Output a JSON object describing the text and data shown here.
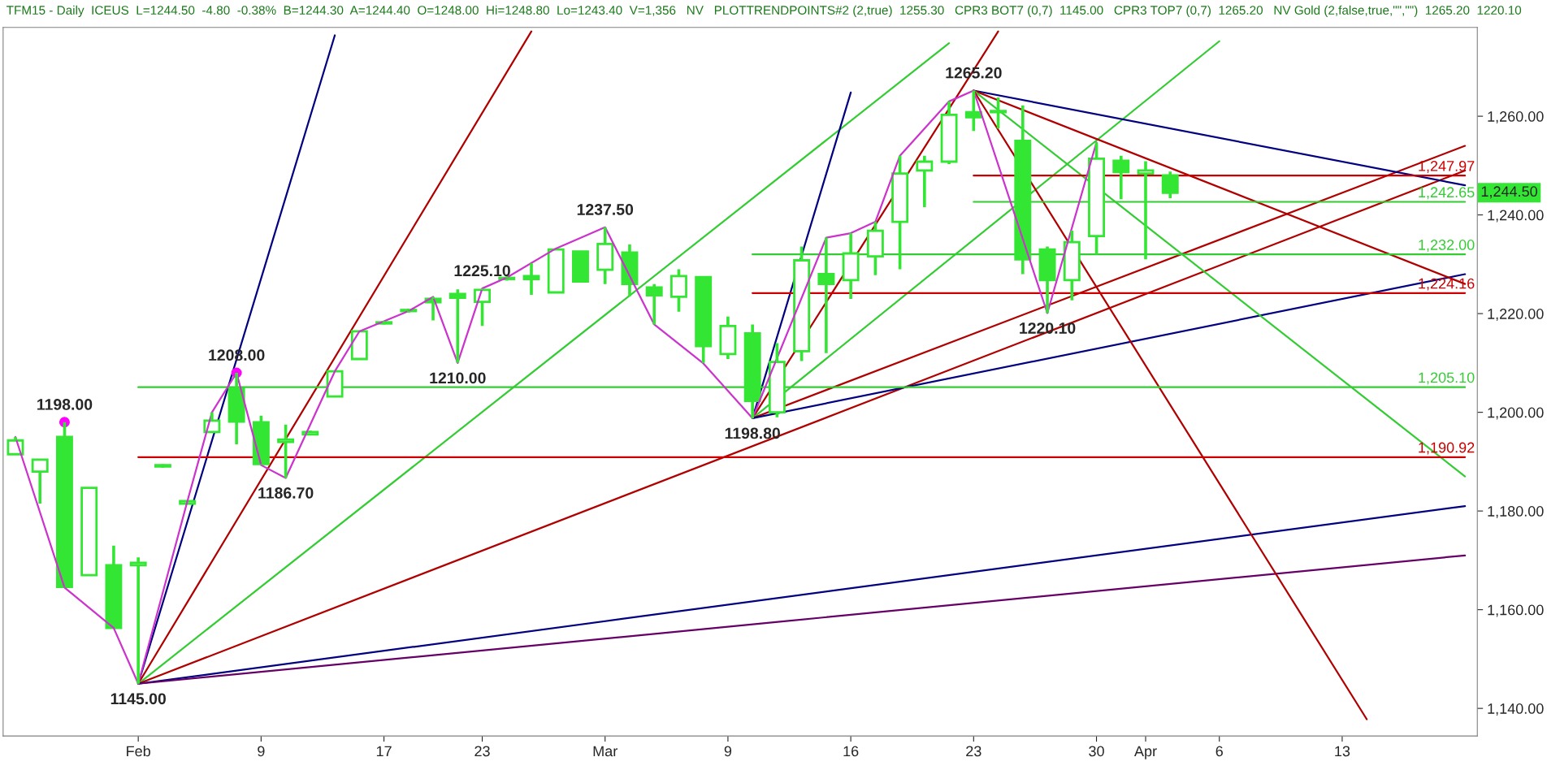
{
  "chart_data": {
    "type": "candlestick",
    "title": "TFM15 - Daily  ICEUS  L=1244.50  -4.80  -0.38%  B=1244.30  A=1244.40  O=1248.00  Hi=1248.80  Lo=1243.40  V=1,356   NV   PLOTTRENDPOINTS#2 (2,true)  1255.30   CPR3 BOT7 (0,7)  1145.00   CPR3 TOP7 (0,7)  1265.20   NV Gold (2,false,true,\"\",\"\")  1265.20  1220.10",
    "color": "#33e633",
    "categories": [
      null,
      null,
      null,
      null,
      null,
      "Feb",
      null,
      null,
      null,
      null,
      "9",
      null,
      null,
      null,
      null,
      "17",
      null,
      null,
      null,
      "23",
      null,
      null,
      null,
      null,
      "Mar",
      null,
      null,
      null,
      null,
      "9",
      null,
      null,
      null,
      null,
      "16",
      null,
      null,
      null,
      null,
      "23",
      null,
      null,
      null,
      null,
      "30",
      null,
      "Apr",
      null,
      null,
      "6",
      null,
      null,
      null,
      null,
      "13",
      null,
      null,
      null,
      null,
      null
    ],
    "ohlc": [
      [
        1191.5,
        1195,
        1191.5,
        1194.3
      ],
      [
        1188,
        1190.5,
        1181.5,
        1190.4
      ],
      [
        1195,
        1198,
        1164.5,
        1164.6
      ],
      [
        1167,
        1184.7,
        1167,
        1184.7
      ],
      [
        1169,
        1173,
        1156.3,
        1156.3
      ],
      [
        1169,
        1170.6,
        1145,
        1169.5
      ],
      [
        1189,
        1189.5,
        1188.8,
        1189.3
      ],
      [
        1181.5,
        1182,
        1181.5,
        1182
      ],
      [
        1196,
        1200,
        1196,
        1198.3
      ],
      [
        1204.8,
        1208,
        1193.5,
        1198.1
      ],
      [
        1198,
        1199.3,
        1189.3,
        1189.5
      ],
      [
        1194,
        1197.5,
        1186.7,
        1194.5
      ],
      [
        1195.5,
        1196.3,
        1195.5,
        1196
      ],
      [
        1203.2,
        1208.3,
        1203.2,
        1208.3
      ],
      [
        1210.8,
        1216.4,
        1210.8,
        1216.4
      ],
      [
        1218,
        1218.5,
        1217.8,
        1218.2
      ],
      [
        1220.5,
        1221,
        1220.2,
        1220.6
      ],
      [
        1223,
        1223.4,
        1218.6,
        1222.3
      ],
      [
        1224,
        1224.9,
        1210,
        1223.2
      ],
      [
        1222.4,
        1225.1,
        1217.5,
        1224.8
      ],
      [
        1227,
        1227.5,
        1226.7,
        1227.2
      ],
      [
        1227.6,
        1230.2,
        1223.8,
        1227
      ],
      [
        1224.3,
        1233,
        1224.3,
        1233
      ],
      [
        1232.6,
        1232.6,
        1226.5,
        1226.5
      ],
      [
        1228.9,
        1237.5,
        1226,
        1234.1
      ],
      [
        1232.4,
        1234,
        1223.5,
        1226
      ],
      [
        1225.3,
        1226,
        1217.8,
        1223.7
      ],
      [
        1223.4,
        1229,
        1220.4,
        1227.6
      ],
      [
        1227.4,
        1227.4,
        1210,
        1213.4
      ],
      [
        1211.8,
        1219.4,
        1210.8,
        1217.5
      ],
      [
        1216,
        1217.8,
        1198.8,
        1202.3
      ],
      [
        1200,
        1214,
        1199,
        1210.2
      ],
      [
        1212.4,
        1233.6,
        1210.4,
        1230.8
      ],
      [
        1228,
        1235.4,
        1212,
        1226
      ],
      [
        1226.8,
        1236.3,
        1223,
        1232.2
      ],
      [
        1231.6,
        1238.6,
        1227.8,
        1236.8
      ],
      [
        1238.6,
        1252,
        1229,
        1248.4
      ],
      [
        1249,
        1252,
        1241.6,
        1250.8
      ],
      [
        1250.8,
        1263,
        1250.3,
        1260.3
      ],
      [
        1260.8,
        1265.2,
        1257,
        1259.8
      ],
      [
        1260.8,
        1263.8,
        1257.5,
        1261
      ],
      [
        1255,
        1262.2,
        1228,
        1231
      ],
      [
        1233,
        1233.6,
        1220.1,
        1226.8
      ],
      [
        1226.8,
        1236.8,
        1222.7,
        1234.5
      ],
      [
        1235.7,
        1254.7,
        1232,
        1251.4
      ],
      [
        1251,
        1252,
        1243.2,
        1248.7
      ],
      [
        1248.4,
        1250.9,
        1231,
        1249
      ],
      [
        1248,
        1248.8,
        1243.4,
        1244.5
      ],
      null,
      null,
      null,
      null,
      null,
      null,
      null,
      null,
      null,
      null,
      null,
      null
    ],
    "series": [
      {
        "type": "line",
        "color": "#cc33cc",
        "values": [
          1195,
          null,
          1164.5,
          null,
          1156.3,
          1145,
          null,
          1182,
          1200,
          1208,
          1189.3,
          1186.7,
          null,
          1208.3,
          1216.4,
          null,
          1220.5,
          1223.4,
          1210,
          1225.1,
          1227.3,
          null,
          1233.2,
          null,
          1237.5,
          null,
          1217.8,
          null,
          1209.9,
          null,
          1198.8,
          null,
          null,
          1235.4,
          1236.3,
          1238.6,
          1252,
          null,
          1263,
          1265.2,
          null,
          null,
          1220.1,
          null,
          1254.7,
          null,
          null,
          null,
          null,
          null,
          null,
          null,
          null,
          null,
          null,
          null,
          null,
          null,
          null,
          null
        ]
      },
      {
        "type": "line",
        "color": "#000080",
        "values": [
          null,
          null,
          null,
          null,
          null,
          1145,
          null,
          null,
          null,
          null,
          null,
          null,
          null,
          1276.4,
          null,
          null,
          null,
          null,
          null,
          null,
          null,
          null,
          null,
          null,
          null,
          null,
          null,
          null,
          null,
          null,
          null,
          null,
          null,
          null,
          null,
          null,
          null,
          null,
          null,
          null,
          null,
          null,
          null,
          null,
          null,
          null,
          null,
          null,
          null,
          null,
          null,
          null,
          null,
          null,
          null,
          null,
          null,
          null,
          null,
          null
        ]
      },
      {
        "type": "line",
        "color": "#b00000",
        "values": [
          null,
          null,
          null,
          null,
          null,
          1145,
          null,
          null,
          null,
          null,
          null,
          null,
          null,
          null,
          null,
          null,
          null,
          null,
          null,
          null,
          null,
          1277.2,
          null,
          null,
          null,
          null,
          null,
          null,
          null,
          null,
          null,
          null,
          null,
          null,
          null,
          null,
          null,
          null,
          null,
          null,
          null,
          null,
          null,
          null,
          null,
          null,
          null,
          null,
          null,
          null,
          null,
          null,
          null,
          null,
          null,
          null,
          null,
          null,
          null,
          null
        ]
      },
      {
        "type": "line",
        "color": "#33cc33",
        "values": [
          null,
          null,
          null,
          null,
          null,
          1145,
          null,
          null,
          null,
          null,
          null,
          null,
          null,
          null,
          null,
          null,
          null,
          null,
          null,
          null,
          null,
          null,
          null,
          null,
          null,
          null,
          null,
          null,
          null,
          null,
          null,
          null,
          null,
          null,
          null,
          null,
          null,
          null,
          1274.8,
          null,
          null,
          null,
          null,
          null,
          null,
          null,
          null,
          null,
          null,
          null,
          null,
          null,
          null,
          null,
          null,
          null,
          null,
          null,
          null,
          null
        ]
      },
      {
        "type": "line",
        "color": "#b00000",
        "values": [
          null,
          null,
          null,
          null,
          null,
          1145,
          null,
          null,
          null,
          null,
          null,
          null,
          null,
          null,
          null,
          null,
          null,
          null,
          null,
          null,
          null,
          null,
          null,
          null,
          null,
          null,
          null,
          null,
          null,
          null,
          null,
          null,
          null,
          null,
          null,
          null,
          null,
          null,
          null,
          null,
          null,
          null,
          null,
          null,
          null,
          null,
          null,
          null,
          null,
          null,
          null,
          null,
          null,
          null,
          null,
          null,
          null,
          null,
          null,
          1249
        ]
      },
      {
        "type": "line",
        "color": "#000080",
        "values": [
          null,
          null,
          null,
          null,
          null,
          1145,
          null,
          null,
          null,
          null,
          null,
          null,
          null,
          null,
          null,
          null,
          null,
          null,
          null,
          null,
          null,
          null,
          null,
          null,
          null,
          null,
          null,
          null,
          null,
          null,
          null,
          null,
          null,
          null,
          null,
          null,
          null,
          null,
          null,
          null,
          null,
          null,
          null,
          null,
          null,
          null,
          null,
          null,
          null,
          null,
          null,
          null,
          null,
          null,
          null,
          null,
          null,
          null,
          null,
          1181
        ]
      },
      {
        "type": "line",
        "color": "#660066",
        "values": [
          null,
          null,
          null,
          null,
          null,
          1145,
          null,
          null,
          null,
          null,
          null,
          null,
          null,
          null,
          null,
          null,
          null,
          null,
          null,
          null,
          null,
          null,
          null,
          null,
          null,
          null,
          null,
          null,
          null,
          null,
          null,
          null,
          null,
          null,
          null,
          null,
          null,
          null,
          null,
          null,
          null,
          null,
          null,
          null,
          null,
          null,
          null,
          null,
          null,
          null,
          null,
          null,
          null,
          null,
          null,
          null,
          null,
          null,
          null,
          1171
        ]
      },
      {
        "type": "line",
        "color": "#000080",
        "values": [
          null,
          null,
          null,
          null,
          null,
          null,
          null,
          null,
          null,
          null,
          null,
          null,
          null,
          null,
          null,
          null,
          null,
          null,
          null,
          null,
          null,
          null,
          null,
          null,
          null,
          null,
          null,
          null,
          null,
          null,
          1198.8,
          null,
          null,
          null,
          1264.8,
          null,
          null,
          null,
          null,
          null,
          null,
          null,
          null,
          null,
          null,
          null,
          null,
          null,
          null,
          null,
          null,
          null,
          null,
          null,
          null,
          null,
          null,
          null,
          null,
          null
        ]
      },
      {
        "type": "line",
        "color": "#b00000",
        "values": [
          null,
          null,
          null,
          null,
          null,
          null,
          null,
          null,
          null,
          null,
          null,
          null,
          null,
          null,
          null,
          null,
          null,
          null,
          null,
          null,
          null,
          null,
          null,
          null,
          null,
          null,
          null,
          null,
          null,
          null,
          1198.8,
          null,
          null,
          null,
          null,
          null,
          null,
          null,
          null,
          null,
          1277.2,
          null,
          null,
          null,
          null,
          null,
          null,
          null,
          null,
          null,
          null,
          null,
          null,
          null,
          null,
          null,
          null,
          null,
          null,
          null
        ]
      },
      {
        "type": "line",
        "color": "#33cc33",
        "values": [
          null,
          null,
          null,
          null,
          null,
          null,
          null,
          null,
          null,
          null,
          null,
          null,
          null,
          null,
          null,
          null,
          null,
          null,
          null,
          null,
          null,
          null,
          null,
          null,
          null,
          null,
          null,
          null,
          null,
          null,
          1198.8,
          null,
          null,
          null,
          null,
          null,
          null,
          null,
          null,
          null,
          null,
          null,
          null,
          null,
          null,
          null,
          null,
          null,
          null,
          1275.2,
          null,
          null,
          null,
          null,
          null,
          null,
          null,
          null,
          null,
          null
        ]
      },
      {
        "type": "line",
        "color": "#b00000",
        "values": [
          null,
          null,
          null,
          null,
          null,
          null,
          null,
          null,
          null,
          null,
          null,
          null,
          null,
          null,
          null,
          null,
          null,
          null,
          null,
          null,
          null,
          null,
          null,
          null,
          null,
          null,
          null,
          null,
          null,
          null,
          1198.8,
          null,
          null,
          null,
          null,
          null,
          null,
          null,
          null,
          null,
          null,
          null,
          null,
          null,
          null,
          null,
          null,
          null,
          null,
          null,
          null,
          null,
          null,
          null,
          null,
          null,
          null,
          null,
          null,
          1254
        ]
      },
      {
        "type": "line",
        "color": "#000080",
        "values": [
          null,
          null,
          null,
          null,
          null,
          null,
          null,
          null,
          null,
          null,
          null,
          null,
          null,
          null,
          null,
          null,
          null,
          null,
          null,
          null,
          null,
          null,
          null,
          null,
          null,
          null,
          null,
          null,
          null,
          null,
          1198.8,
          null,
          null,
          null,
          null,
          null,
          null,
          null,
          null,
          null,
          null,
          null,
          null,
          null,
          null,
          null,
          null,
          null,
          null,
          null,
          null,
          null,
          null,
          null,
          null,
          null,
          null,
          null,
          null,
          1228
        ]
      },
      {
        "type": "line",
        "color": "#000080",
        "values": [
          null,
          null,
          null,
          null,
          null,
          null,
          null,
          null,
          null,
          null,
          null,
          null,
          null,
          null,
          null,
          null,
          null,
          null,
          null,
          null,
          null,
          null,
          null,
          null,
          null,
          null,
          null,
          null,
          null,
          null,
          null,
          null,
          null,
          null,
          null,
          null,
          null,
          null,
          null,
          1265.2,
          null,
          null,
          null,
          null,
          null,
          null,
          null,
          null,
          null,
          null,
          null,
          null,
          null,
          null,
          null,
          null,
          null,
          null,
          null,
          1246
        ]
      },
      {
        "type": "line",
        "color": "#b00000",
        "values": [
          null,
          null,
          null,
          null,
          null,
          null,
          null,
          null,
          null,
          null,
          null,
          null,
          null,
          null,
          null,
          null,
          null,
          null,
          null,
          null,
          null,
          null,
          null,
          null,
          null,
          null,
          null,
          null,
          null,
          null,
          null,
          null,
          null,
          null,
          null,
          null,
          null,
          null,
          null,
          1265.2,
          null,
          null,
          null,
          null,
          null,
          null,
          null,
          null,
          null,
          null,
          null,
          null,
          null,
          null,
          null,
          null,
          null,
          null,
          null,
          1226
        ]
      },
      {
        "type": "line",
        "color": "#33cc33",
        "values": [
          null,
          null,
          null,
          null,
          null,
          null,
          null,
          null,
          null,
          null,
          null,
          null,
          null,
          null,
          null,
          null,
          null,
          null,
          null,
          null,
          null,
          null,
          null,
          null,
          null,
          null,
          null,
          null,
          null,
          null,
          null,
          null,
          null,
          null,
          null,
          null,
          null,
          null,
          null,
          1265.2,
          null,
          null,
          null,
          null,
          null,
          null,
          null,
          null,
          null,
          null,
          null,
          null,
          null,
          null,
          null,
          null,
          null,
          null,
          null,
          1187
        ]
      },
      {
        "type": "line",
        "color": "#b00000",
        "values": [
          null,
          null,
          null,
          null,
          null,
          null,
          null,
          null,
          null,
          null,
          null,
          null,
          null,
          null,
          null,
          null,
          null,
          null,
          null,
          null,
          null,
          null,
          null,
          null,
          null,
          null,
          null,
          null,
          null,
          null,
          null,
          null,
          null,
          null,
          null,
          null,
          null,
          null,
          null,
          1265.2,
          null,
          null,
          null,
          null,
          null,
          null,
          null,
          null,
          null,
          null,
          null,
          null,
          null,
          null,
          null,
          1137.8,
          null,
          null,
          null,
          null
        ]
      },
      {
        "type": "line",
        "name": "1,247.97",
        "color": "#cc0000",
        "values": [
          null,
          null,
          null,
          null,
          null,
          null,
          null,
          null,
          null,
          null,
          null,
          null,
          null,
          null,
          null,
          null,
          null,
          null,
          null,
          null,
          null,
          null,
          null,
          null,
          null,
          null,
          null,
          null,
          null,
          null,
          null,
          null,
          null,
          null,
          null,
          null,
          null,
          null,
          null,
          1247.97,
          null,
          null,
          null,
          null,
          null,
          null,
          null,
          null,
          null,
          null,
          null,
          null,
          null,
          null,
          null,
          null,
          null,
          null,
          null,
          1247.97
        ]
      },
      {
        "type": "line",
        "name": "1,242.65",
        "color": "#33cc33",
        "values": [
          null,
          null,
          null,
          null,
          null,
          null,
          null,
          null,
          null,
          null,
          null,
          null,
          null,
          null,
          null,
          null,
          null,
          null,
          null,
          null,
          null,
          null,
          null,
          null,
          null,
          null,
          null,
          null,
          null,
          null,
          null,
          null,
          null,
          null,
          null,
          null,
          null,
          null,
          null,
          1242.65,
          null,
          null,
          null,
          null,
          null,
          null,
          null,
          null,
          null,
          null,
          null,
          null,
          null,
          null,
          null,
          null,
          null,
          null,
          null,
          1242.65
        ]
      },
      {
        "type": "line",
        "name": "1,232.00",
        "color": "#33cc33",
        "values": [
          null,
          null,
          null,
          null,
          null,
          null,
          null,
          null,
          null,
          null,
          null,
          null,
          null,
          null,
          null,
          null,
          null,
          null,
          null,
          null,
          null,
          null,
          null,
          null,
          null,
          null,
          null,
          null,
          null,
          null,
          1232,
          null,
          null,
          null,
          null,
          null,
          null,
          null,
          null,
          null,
          null,
          null,
          null,
          null,
          null,
          null,
          null,
          null,
          null,
          null,
          null,
          null,
          null,
          null,
          null,
          null,
          null,
          null,
          null,
          1232
        ]
      },
      {
        "type": "line",
        "name": "1,224.16",
        "color": "#cc0000",
        "values": [
          null,
          null,
          null,
          null,
          null,
          null,
          null,
          null,
          null,
          null,
          null,
          null,
          null,
          null,
          null,
          null,
          null,
          null,
          null,
          null,
          null,
          null,
          null,
          null,
          null,
          null,
          null,
          null,
          null,
          null,
          1224.16,
          null,
          null,
          null,
          null,
          null,
          null,
          null,
          null,
          null,
          null,
          null,
          null,
          null,
          null,
          null,
          null,
          null,
          null,
          null,
          null,
          null,
          null,
          null,
          null,
          null,
          null,
          null,
          null,
          1224.16
        ]
      },
      {
        "type": "line",
        "name": "1,205.10",
        "color": "#33cc33",
        "values": [
          null,
          null,
          null,
          null,
          null,
          1205.1,
          null,
          null,
          null,
          null,
          null,
          null,
          null,
          null,
          null,
          null,
          null,
          null,
          null,
          null,
          null,
          null,
          null,
          null,
          null,
          null,
          null,
          null,
          null,
          null,
          null,
          null,
          null,
          null,
          null,
          null,
          null,
          null,
          null,
          null,
          null,
          null,
          null,
          null,
          null,
          null,
          null,
          null,
          null,
          null,
          null,
          null,
          null,
          null,
          null,
          null,
          null,
          null,
          null,
          1205.1
        ]
      },
      {
        "type": "line",
        "name": "1,190.92",
        "color": "#cc0000",
        "values": [
          null,
          null,
          null,
          null,
          null,
          1190.92,
          null,
          null,
          null,
          null,
          null,
          null,
          null,
          null,
          null,
          null,
          null,
          null,
          null,
          null,
          null,
          null,
          null,
          null,
          null,
          null,
          null,
          null,
          null,
          null,
          null,
          null,
          null,
          null,
          null,
          null,
          null,
          null,
          null,
          null,
          null,
          null,
          null,
          null,
          null,
          null,
          null,
          null,
          null,
          null,
          null,
          null,
          null,
          null,
          null,
          null,
          null,
          null,
          null,
          1190.92
        ]
      },
      {
        "type": "scatter",
        "marker": "circle",
        "color": "#ff00ff",
        "values": [
          null,
          null,
          1198,
          null,
          null,
          null,
          null,
          null,
          null,
          1208,
          null,
          null,
          null,
          null,
          null,
          null,
          null,
          null,
          null,
          null,
          null,
          null,
          null,
          null,
          null,
          null,
          null,
          null,
          null,
          null,
          null,
          null,
          null,
          null,
          null,
          null,
          null,
          null,
          null,
          null,
          null,
          null,
          null,
          null,
          null,
          null,
          null,
          null,
          null,
          null,
          null,
          null,
          null,
          null,
          null,
          null,
          null,
          null,
          null,
          null
        ]
      }
    ],
    "annotations": [
      {
        "text": "1198.00",
        "y": 1198
      },
      {
        "text": "1145.00",
        "y": 1145
      },
      {
        "text": "1208.00",
        "y": 1208
      },
      {
        "text": "1186.70",
        "y": 1186.7
      },
      {
        "text": "1210.00",
        "y": 1210
      },
      {
        "text": "1225.10",
        "y": 1225.1
      },
      {
        "text": "1237.50",
        "y": 1237.5
      },
      {
        "text": "1198.80",
        "y": 1198.8
      },
      {
        "text": "1265.20",
        "y": 1265.2
      },
      {
        "text": "1220.10",
        "y": 1220.1
      },
      "1,244.50"
    ],
    "ylim": [
      1134.4,
      1278
    ],
    "yticks": [
      {
        "value": 1140,
        "label": "1,140.00"
      },
      {
        "value": 1160,
        "label": "1,160.00"
      },
      {
        "value": 1180,
        "label": "1,180.00"
      },
      {
        "value": 1200,
        "label": "1,200.00"
      },
      {
        "value": 1220,
        "label": "1,220.00"
      },
      {
        "value": 1240,
        "label": "1,240.00"
      },
      {
        "value": 1260,
        "label": "1,260.00"
      }
    ]
  }
}
